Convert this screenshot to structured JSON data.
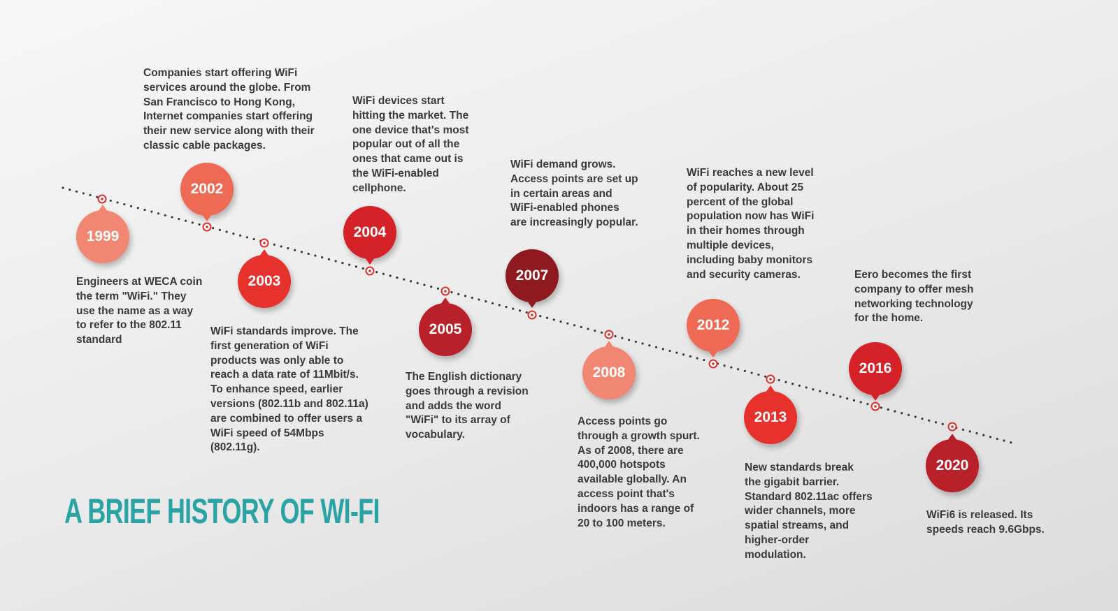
{
  "title": "A BRIEF HISTORY OF WI-FI",
  "colors": {
    "title": "#2aa3a5",
    "dots": "#3a3a3a",
    "marker": "#d9302c",
    "text": "#3a3a3a"
  },
  "events": [
    {
      "year": "1999",
      "color": "#f18672",
      "text": "Engineers at WECA coin\nthe term \"WiFi.\" They\nuse the name as a way\nto refer to the 802.11\nstandard"
    },
    {
      "year": "2002",
      "color": "#ee6a55",
      "text": "Companies start offering WiFi\nservices around the globe. From\nSan Francisco to Hong Kong,\nInternet companies start offering\ntheir new service along with their\nclassic cable packages."
    },
    {
      "year": "2003",
      "color": "#e6312c",
      "text": "WiFi standards improve. The\nfirst generation of WiFi\nproducts was only able to\nreach a data rate of 11Mbit/s.\nTo enhance speed, earlier\nversions (802.11b and 802.11a)\nare combined to offer users a\nWiFi speed of 54Mbps\n(802.11g)."
    },
    {
      "year": "2004",
      "color": "#d52228",
      "text": "WiFi devices start\nhitting the market. The\none device that's most\npopular out of all the\nones that came out is\nthe WiFi-enabled\ncellphone."
    },
    {
      "year": "2005",
      "color": "#b8202a",
      "text": "The English dictionary\ngoes through a revision\nand adds the word\n\"WiFi\" to its array of\nvocabulary."
    },
    {
      "year": "2007",
      "color": "#8e1a1f",
      "text": "WiFi demand grows.\nAccess points are set up\nin certain areas and\nWiFi-enabled phones\nare increasingly popular."
    },
    {
      "year": "2008",
      "color": "#f18672",
      "text": "Access points go\nthrough a growth spurt.\nAs of 2008, there are\n400,000 hotspots\navailable globally. An\naccess point that's\nindoors has a range of\n20 to 100 meters."
    },
    {
      "year": "2012",
      "color": "#ee6a55",
      "text": "WiFi reaches a new level\nof popularity. About 25\npercent of the global\npopulation now has WiFi\nin their homes through\nmultiple devices,\nincluding baby monitors\nand security cameras."
    },
    {
      "year": "2013",
      "color": "#e6312c",
      "text": "New standards break\nthe gigabit barrier.\nStandard 802.11ac offers\nwider channels, more\nspatial streams, and\nhigher-order\nmodulation."
    },
    {
      "year": "2016",
      "color": "#d52228",
      "text": "Eero becomes the first\ncompany to offer mesh\nnetworking technology\nfor the home."
    },
    {
      "year": "2020",
      "color": "#b8202a",
      "text": "WiFi6 is released. Its\nspeeds reach 9.6Gbps."
    }
  ]
}
